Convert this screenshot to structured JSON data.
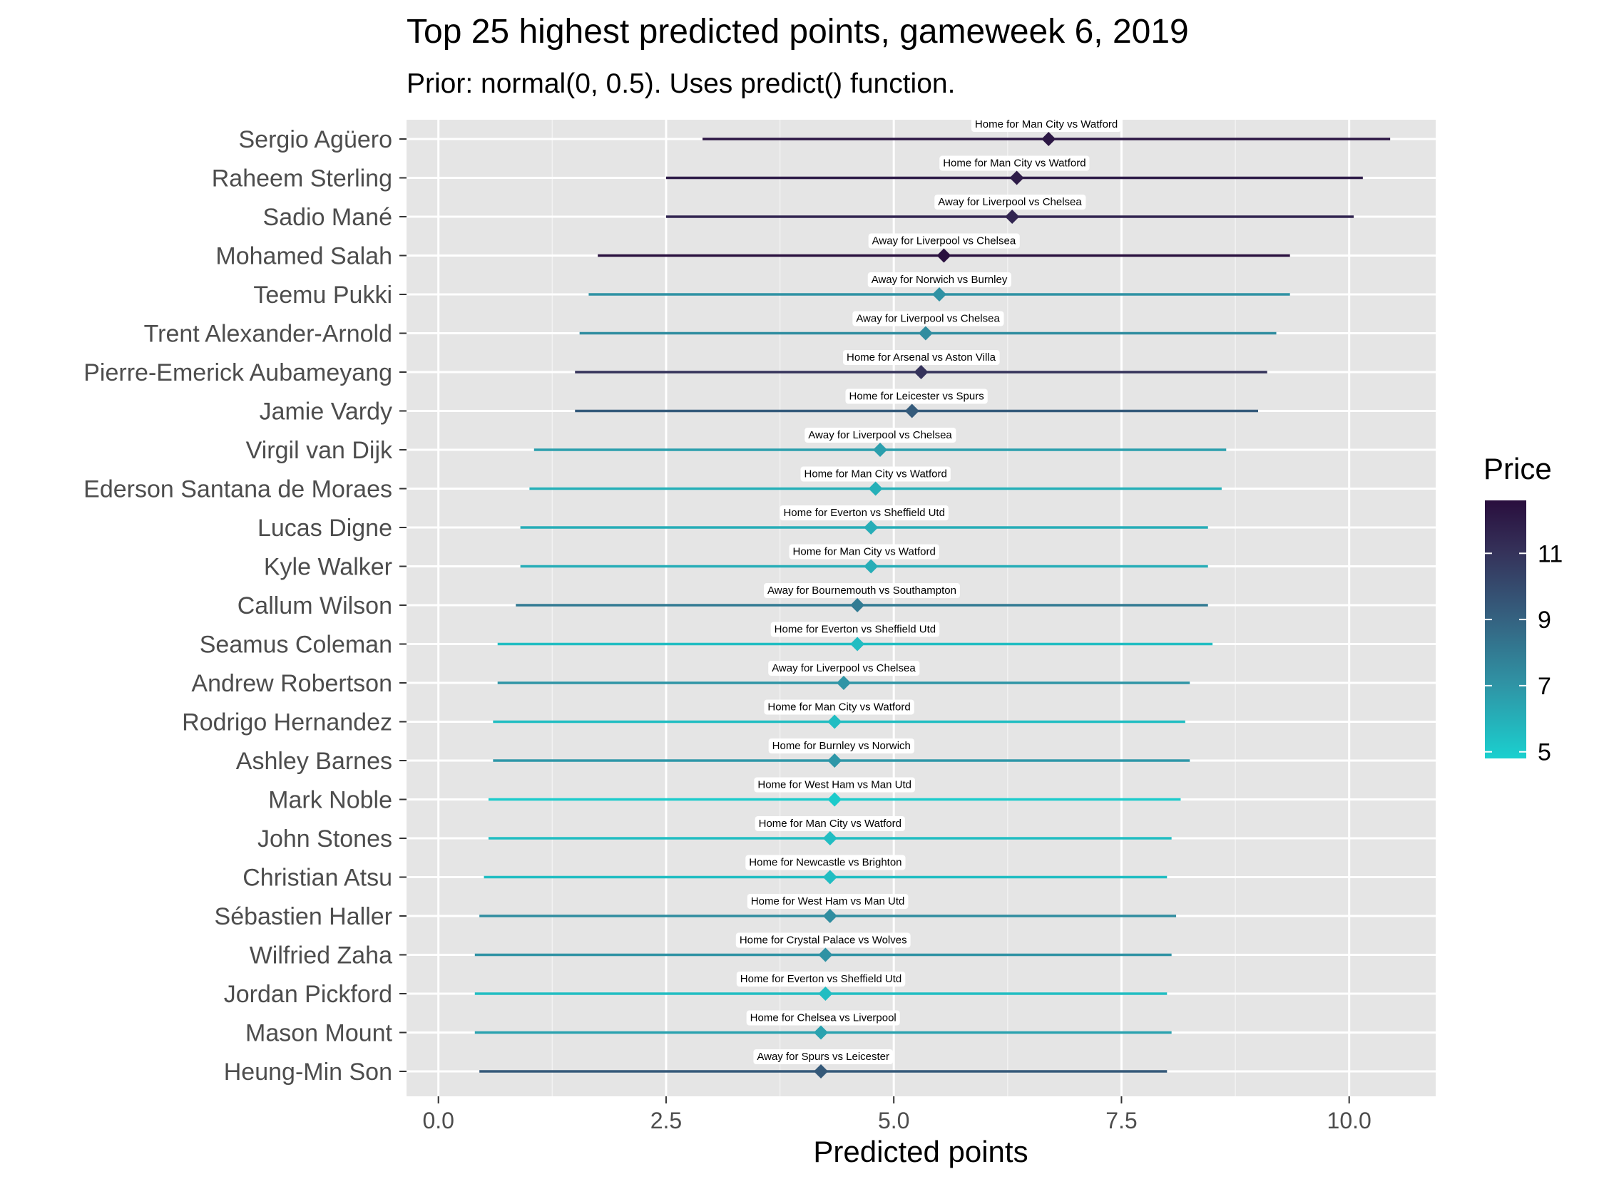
{
  "chart_data": {
    "type": "pointrange",
    "title": "Top 25 highest predicted points, gameweek 6, 2019",
    "subtitle": "Prior: normal(0, 0.5). Uses predict() function.",
    "xlabel": "Predicted points",
    "ylabel": "",
    "xlim": [
      -0.35,
      10.95
    ],
    "x_ticks": [
      0,
      2.5,
      5,
      7.5,
      10
    ],
    "x_tick_labels": [
      "0.0",
      "2.5",
      "5.0",
      "7.5",
      "10.0"
    ],
    "grid": true,
    "legend": {
      "title": "Price",
      "position": "right",
      "range": [
        4.8,
        12.6
      ],
      "ticks": [
        5,
        7,
        9,
        11
      ],
      "tick_labels": [
        "5",
        "7",
        "9",
        "11"
      ],
      "low_color": "#1ad0cf",
      "high_color": "#290e3d"
    },
    "players": [
      {
        "name": "Sergio Agüero",
        "label": "Home for Man City vs Watford",
        "low": 2.9,
        "mid": 6.7,
        "high": 10.45,
        "price": 12.2
      },
      {
        "name": "Raheem Sterling",
        "label": "Home for Man City vs Watford",
        "low": 2.5,
        "mid": 6.35,
        "high": 10.15,
        "price": 12.0
      },
      {
        "name": "Sadio Mané",
        "label": "Away for Liverpool vs Chelsea",
        "low": 2.5,
        "mid": 6.3,
        "high": 10.05,
        "price": 11.6
      },
      {
        "name": "Mohamed Salah",
        "label": "Away for Liverpool vs Chelsea",
        "low": 1.75,
        "mid": 5.55,
        "high": 9.35,
        "price": 12.5
      },
      {
        "name": "Teemu Pukki",
        "label": "Away for Norwich vs Burnley",
        "low": 1.65,
        "mid": 5.5,
        "high": 9.35,
        "price": 7.1
      },
      {
        "name": "Trent Alexander-Arnold",
        "label": "Away for Liverpool vs Chelsea",
        "low": 1.55,
        "mid": 5.35,
        "high": 9.2,
        "price": 7.3
      },
      {
        "name": "Pierre-Emerick Aubameyang",
        "label": "Home for Arsenal vs Aston Villa",
        "low": 1.5,
        "mid": 5.3,
        "high": 9.1,
        "price": 11.0
      },
      {
        "name": "Jamie Vardy",
        "label": "Home for Leicester vs Spurs",
        "low": 1.5,
        "mid": 5.2,
        "high": 9.0,
        "price": 9.3
      },
      {
        "name": "Virgil van Dijk",
        "label": "Away for Liverpool vs Chelsea",
        "low": 1.05,
        "mid": 4.85,
        "high": 8.65,
        "price": 6.6
      },
      {
        "name": "Ederson Santana de Moraes",
        "label": "Home for Man City vs Watford",
        "low": 1.0,
        "mid": 4.8,
        "high": 8.6,
        "price": 6.0
      },
      {
        "name": "Lucas Digne",
        "label": "Home for Everton vs Sheffield Utd",
        "low": 0.9,
        "mid": 4.75,
        "high": 8.45,
        "price": 6.1
      },
      {
        "name": "Kyle Walker",
        "label": "Home for Man City vs Watford",
        "low": 0.9,
        "mid": 4.75,
        "high": 8.45,
        "price": 6.1
      },
      {
        "name": "Callum Wilson",
        "label": "Away for Bournemouth vs Southampton",
        "low": 0.85,
        "mid": 4.6,
        "high": 8.45,
        "price": 8.0
      },
      {
        "name": "Seamus Coleman",
        "label": "Home for Everton vs Sheffield Utd",
        "low": 0.65,
        "mid": 4.6,
        "high": 8.5,
        "price": 5.5
      },
      {
        "name": "Andrew Robertson",
        "label": "Away for Liverpool vs Chelsea",
        "low": 0.65,
        "mid": 4.45,
        "high": 8.25,
        "price": 7.0
      },
      {
        "name": "Rodrigo Hernandez",
        "label": "Home for Man City vs Watford",
        "low": 0.6,
        "mid": 4.35,
        "high": 8.2,
        "price": 5.5
      },
      {
        "name": "Ashley Barnes",
        "label": "Home for Burnley vs Norwich",
        "low": 0.6,
        "mid": 4.35,
        "high": 8.25,
        "price": 6.9
      },
      {
        "name": "Mark Noble",
        "label": "Home for West Ham vs Man Utd",
        "low": 0.55,
        "mid": 4.35,
        "high": 8.15,
        "price": 5.0
      },
      {
        "name": "John Stones",
        "label": "Home for Man City vs Watford",
        "low": 0.55,
        "mid": 4.3,
        "high": 8.05,
        "price": 5.5
      },
      {
        "name": "Christian Atsu",
        "label": "Home for Newcastle vs Brighton",
        "low": 0.5,
        "mid": 4.3,
        "high": 8.0,
        "price": 5.5
      },
      {
        "name": "Sébastien Haller",
        "label": "Home for West Ham vs Man Utd",
        "low": 0.45,
        "mid": 4.3,
        "high": 8.1,
        "price": 7.3
      },
      {
        "name": "Wilfried Zaha",
        "label": "Home for Crystal Palace vs Wolves",
        "low": 0.4,
        "mid": 4.25,
        "high": 8.05,
        "price": 7.1
      },
      {
        "name": "Jordan Pickford",
        "label": "Home for Everton vs Sheffield Utd",
        "low": 0.4,
        "mid": 4.25,
        "high": 8.0,
        "price": 5.5
      },
      {
        "name": "Mason Mount",
        "label": "Home for Chelsea vs Liverpool",
        "low": 0.4,
        "mid": 4.2,
        "high": 8.05,
        "price": 6.5
      },
      {
        "name": "Heung-Min Son",
        "label": "Away for Spurs vs Leicester",
        "low": 0.45,
        "mid": 4.2,
        "high": 8.0,
        "price": 9.4
      }
    ]
  }
}
